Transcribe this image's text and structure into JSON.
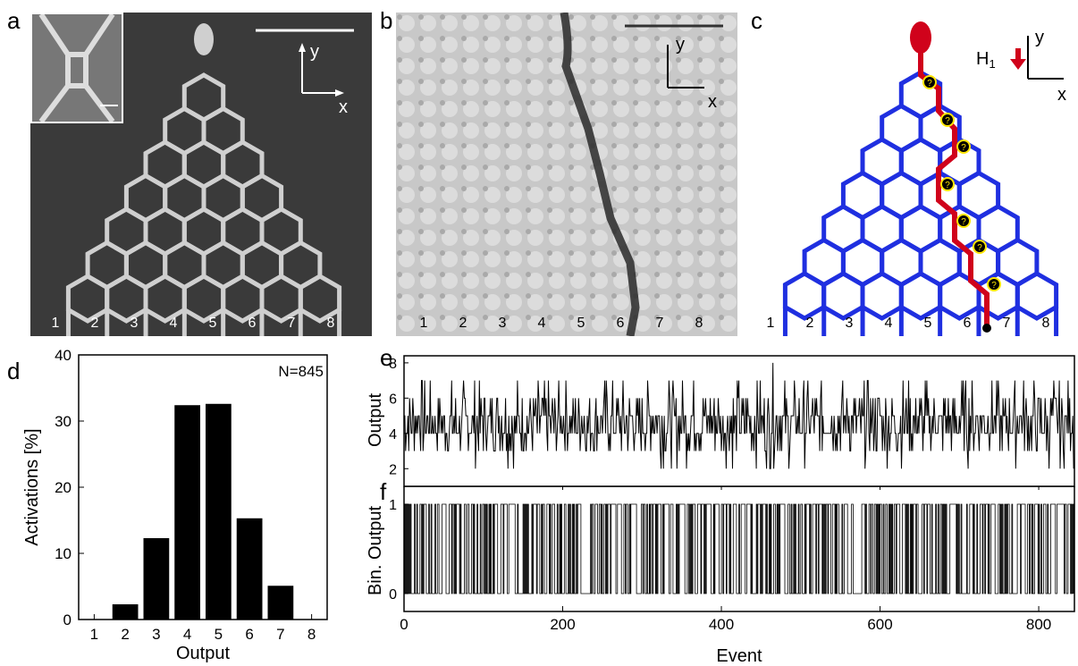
{
  "panels": {
    "a": {
      "label": "a",
      "axis_y": "y",
      "axis_x": "x",
      "outputs": [
        "1",
        "2",
        "3",
        "4",
        "5",
        "6",
        "7",
        "8"
      ]
    },
    "b": {
      "label": "b",
      "axis_y": "y",
      "axis_x": "x",
      "outputs": [
        "1",
        "2",
        "3",
        "4",
        "5",
        "6",
        "7",
        "8"
      ]
    },
    "c": {
      "label": "c",
      "field_label": "H",
      "field_sub": "1",
      "axis_y": "y",
      "axis_x": "x",
      "question": "?",
      "outputs": [
        "1",
        "2",
        "3",
        "4",
        "5",
        "6",
        "7",
        "8"
      ]
    },
    "d": {
      "label": "d"
    },
    "e": {
      "label": "e"
    },
    "f": {
      "label": "f"
    }
  },
  "colors": {
    "lattice_blue": "#1f2fe0",
    "path_red": "#d0021b",
    "vertex_yellow": "#ffe600",
    "sem_background": "#3c3c3c"
  },
  "chart_data": [
    {
      "type": "bar",
      "panel": "d",
      "categories": [
        "1",
        "2",
        "3",
        "4",
        "5",
        "6",
        "7",
        "8"
      ],
      "values": [
        0,
        2.3,
        12.3,
        32.4,
        32.6,
        15.3,
        5.1,
        0
      ],
      "xlabel": "Output",
      "ylabel": "Activations [%]",
      "ylim": [
        0,
        40
      ],
      "yticks": [
        "0",
        "10",
        "20",
        "30",
        "40"
      ],
      "annotation": "N=845"
    },
    {
      "type": "line",
      "panel": "e",
      "xlabel": "",
      "ylabel": "Output",
      "xlim": [
        0,
        845
      ],
      "ylim": [
        1,
        8.4
      ],
      "yticks": [
        "2",
        "4",
        "6",
        "8"
      ],
      "x": [
        0,
        845
      ],
      "values": [
        4.5,
        4.5
      ]
    },
    {
      "type": "line",
      "panel": "f",
      "xlabel": "Event",
      "ylabel": "Bin. Output",
      "xlim": [
        0,
        845
      ],
      "ylim": [
        -0.2,
        1.2
      ],
      "yticks": [
        "0",
        "1"
      ],
      "xticks": [
        "0",
        "200",
        "400",
        "600",
        "800"
      ],
      "values": [
        0,
        1
      ]
    }
  ]
}
